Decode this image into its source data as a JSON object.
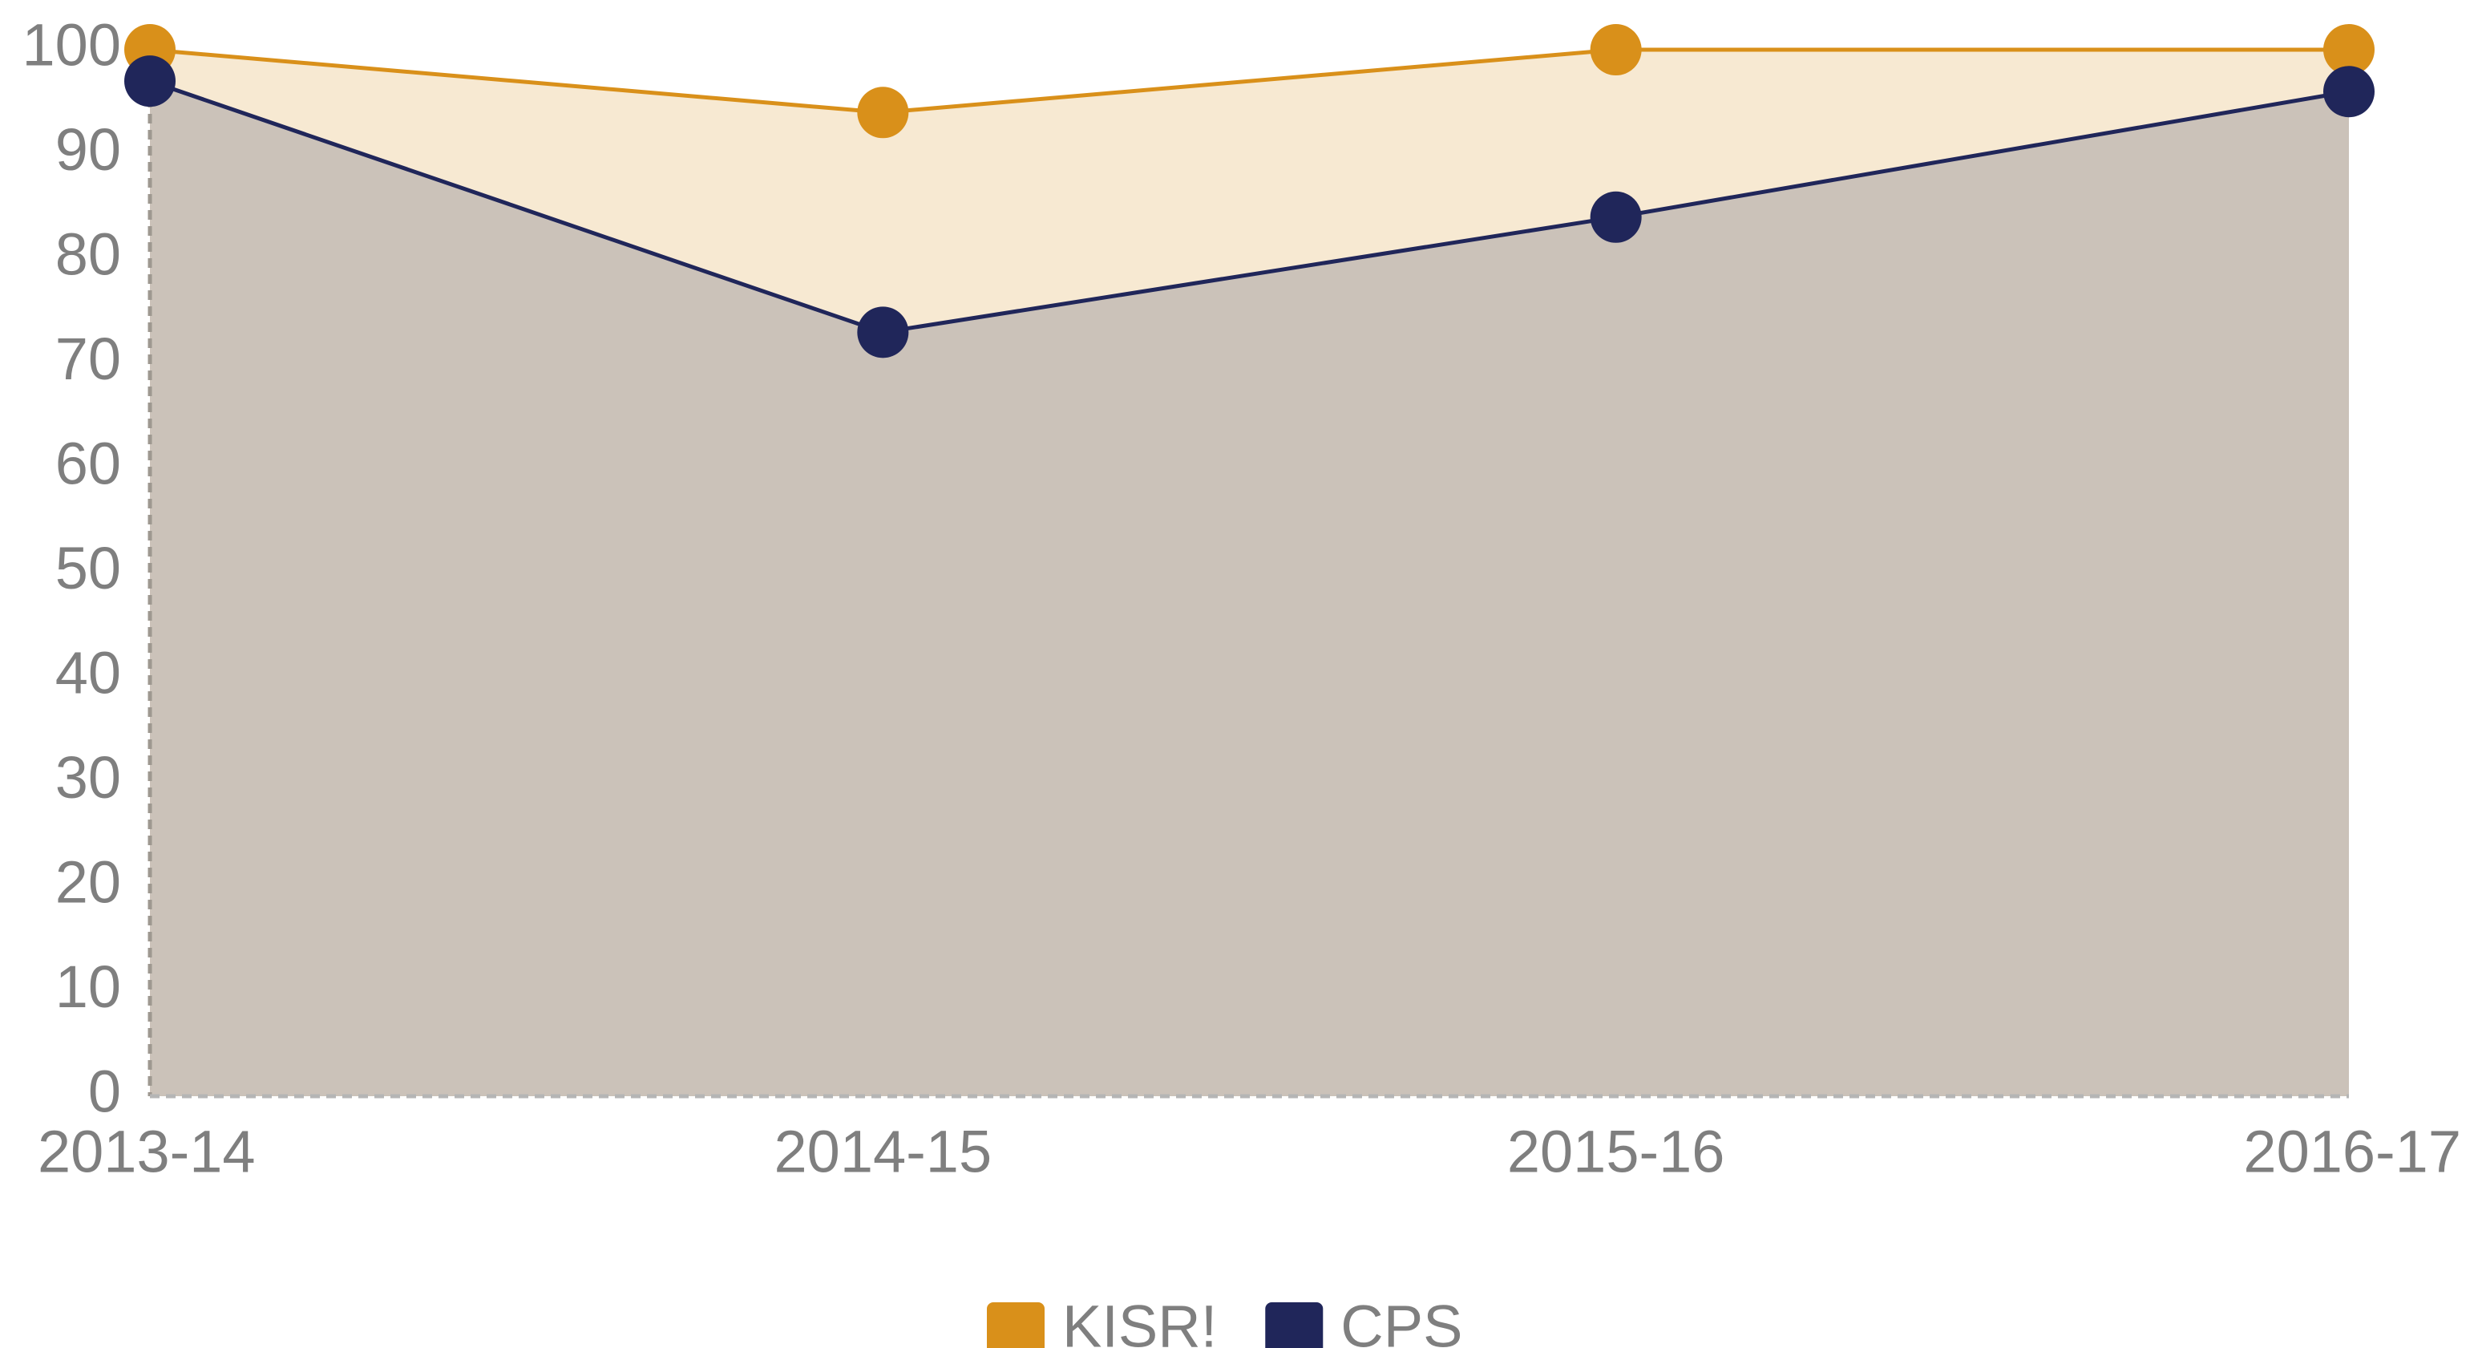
{
  "chart_data": {
    "type": "area",
    "categories": [
      "2013-14",
      "2014-15",
      "2015-16",
      "2016-17"
    ],
    "series": [
      {
        "name": "KISR!",
        "color": "#d9901a",
        "fill": "#f7e9d2",
        "values": [
          100,
          94,
          100,
          100
        ]
      },
      {
        "name": "CPS",
        "color": "#20265a",
        "fill": "#cbc2b9",
        "values": [
          97,
          73,
          84,
          96
        ]
      }
    ],
    "ylim": [
      0,
      100
    ],
    "yticks": [
      0,
      10,
      20,
      30,
      40,
      50,
      60,
      70,
      80,
      90,
      100
    ],
    "grid": false,
    "legend": "bottom"
  }
}
